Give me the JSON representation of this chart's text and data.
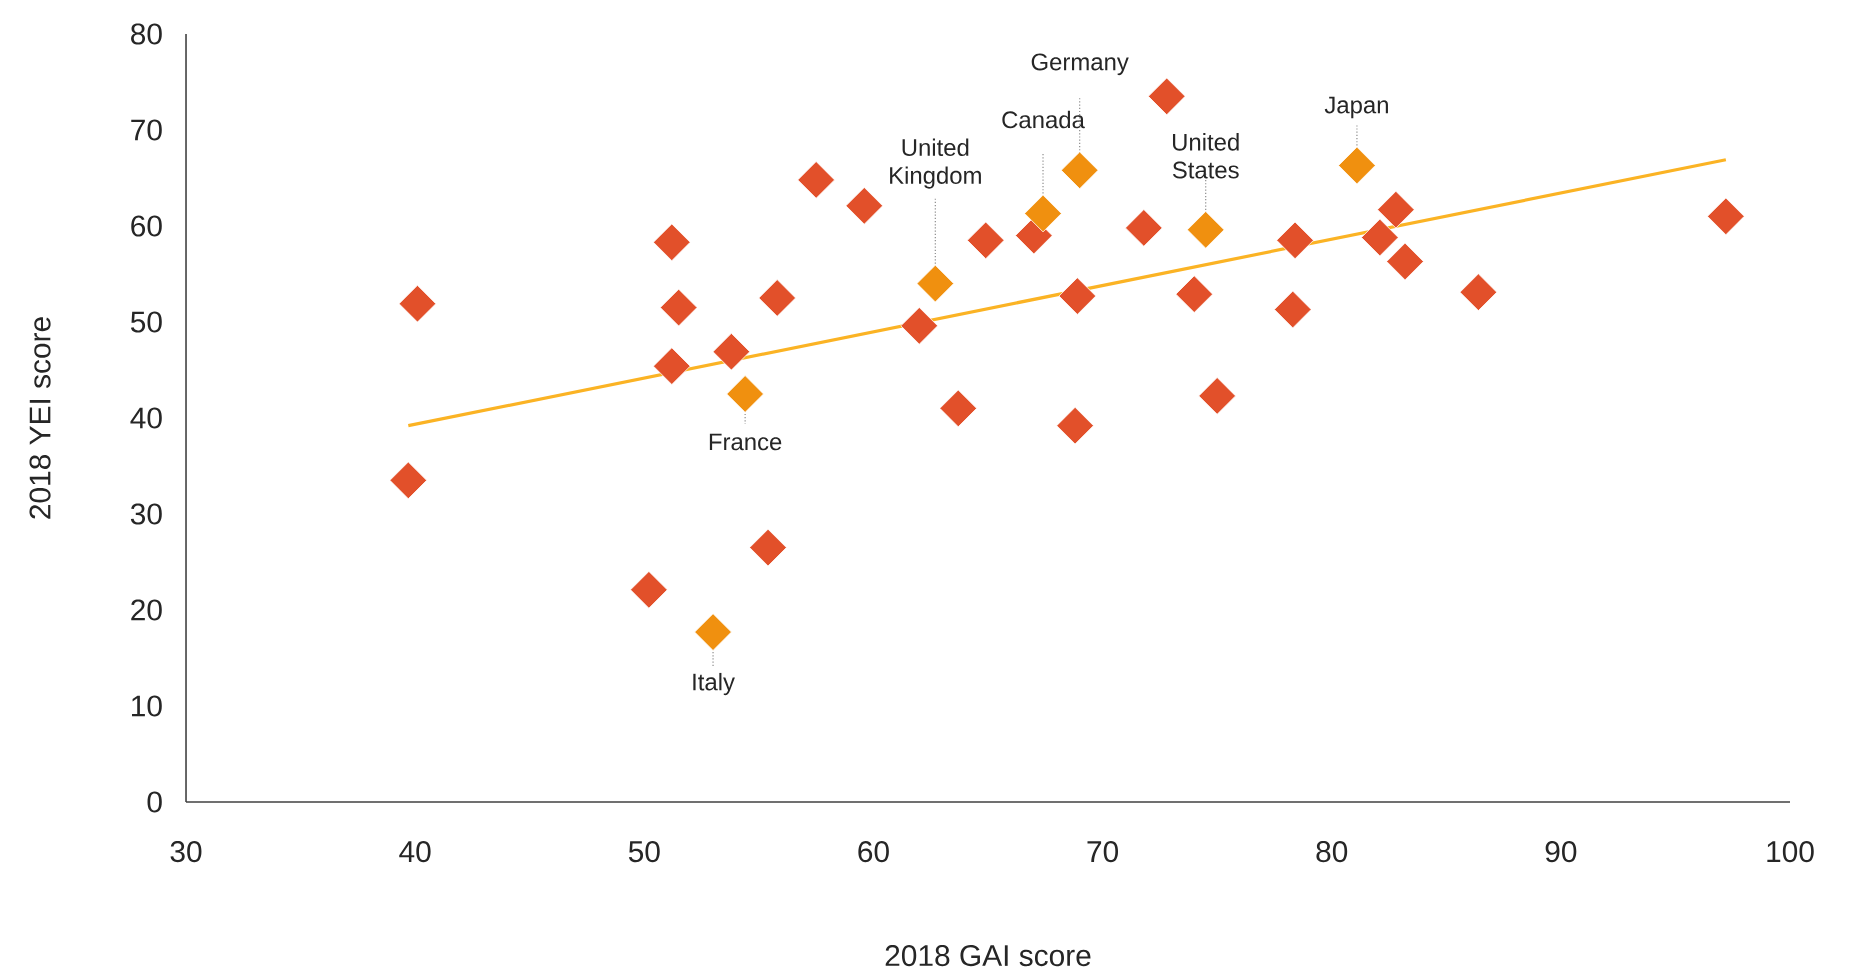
{
  "chart_data": {
    "type": "scatter",
    "xlabel": "2018 GAI score",
    "ylabel": "2018 YEI score",
    "xlim": [
      30,
      100
    ],
    "ylim": [
      0,
      80
    ],
    "xticks": [
      30,
      40,
      50,
      60,
      70,
      80,
      90,
      100
    ],
    "yticks": [
      0,
      10,
      20,
      30,
      40,
      50,
      60,
      70,
      80
    ],
    "marker": "diamond",
    "series": [
      {
        "color": "#e2502a",
        "x": [
          39.7,
          40.1,
          50.2,
          51.2,
          51.2,
          51.5,
          53.8,
          55.4,
          55.8,
          57.5,
          59.6,
          62.0,
          63.7,
          64.9,
          67.0,
          68.9,
          68.8,
          72.8,
          71.8,
          74.0,
          75.0,
          78.4,
          78.3,
          82.1,
          82.8,
          83.2,
          86.4,
          97.2
        ],
        "values": [
          33.5,
          51.9,
          22.1,
          58.3,
          45.4,
          51.5,
          46.9,
          26.5,
          52.5,
          64.8,
          62.1,
          49.6,
          41.0,
          58.5,
          59.0,
          52.7,
          39.2,
          73.5,
          59.8,
          52.9,
          42.3,
          58.5,
          51.3,
          58.8,
          61.7,
          56.3,
          53.1,
          61.0
        ]
      },
      {
        "color": "#f0900f",
        "x": [
          53.0,
          54.4,
          62.7,
          67.4,
          69.0,
          74.5,
          81.1
        ],
        "values": [
          17.7,
          42.5,
          54.0,
          61.3,
          65.8,
          59.6,
          66.3
        ]
      },
      {
        "type": "line",
        "marker": "none",
        "color": "#fbb324",
        "x": [
          39.7,
          97.2
        ],
        "values": [
          39.2,
          66.9
        ]
      }
    ],
    "annotations": [
      {
        "text": "Italy",
        "x": 53.0,
        "y": 17.7
      },
      {
        "text": "France",
        "x": 54.4,
        "y": 42.5
      },
      {
        "text": "United Kingdom",
        "x": 62.7,
        "y": 54.0
      },
      {
        "text": "Canada",
        "x": 67.4,
        "y": 61.3
      },
      {
        "text": "Germany",
        "x": 69.0,
        "y": 65.8
      },
      {
        "text": "United States",
        "x": 74.5,
        "y": 59.6
      },
      {
        "text": "Japan",
        "x": 81.1,
        "y": 66.3
      }
    ]
  }
}
